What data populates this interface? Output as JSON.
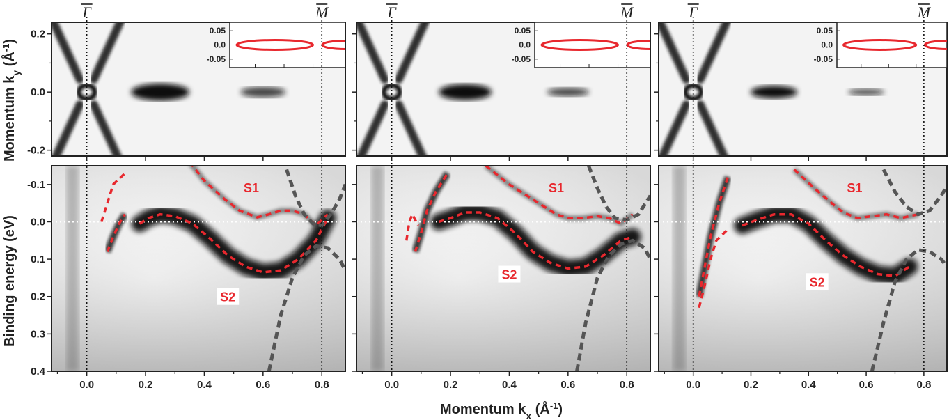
{
  "figure": {
    "x_axis_title": "Momentum k",
    "x_axis_subscript": "x",
    "x_axis_unit": "(Å",
    "x_axis_unit_sup": "-1",
    "x_axis_unit_close": ")",
    "top_y_title": "Momentum k",
    "top_y_subscript": "y",
    "top_y_unit": "(Å",
    "top_y_unit_sup": "-1",
    "top_y_unit_close": ")",
    "bottom_y_title": "Binding energy (eV)",
    "gamma_label": "Γ",
    "m_label": "M"
  },
  "chart_data": {
    "type": "heatmap",
    "panels": 3,
    "x_ticks": [
      "0.0",
      "0.2",
      "0.4",
      "0.6",
      "0.8"
    ],
    "x_tick_values": [
      0.0,
      0.2,
      0.4,
      0.6,
      0.8
    ],
    "xlim": [
      -0.12,
      0.88
    ],
    "top_y_ticks": [
      "0.2",
      "0.0",
      "-0.2"
    ],
    "top_y_tick_values": [
      0.2,
      0.0,
      -0.2
    ],
    "top_ylim": [
      -0.22,
      0.24
    ],
    "bottom_y_ticks": [
      "-0.1",
      "0.0",
      "0.1",
      "0.2",
      "0.3",
      "0.4"
    ],
    "bottom_y_tick_values": [
      -0.1,
      0.0,
      0.1,
      0.2,
      0.3,
      0.4
    ],
    "bottom_ylim": [
      -0.15,
      0.4
    ],
    "inset_y_ticks": [
      "0.05",
      "0.0",
      "-0.05"
    ],
    "inset_y_tick_values": [
      0.05,
      0.0,
      -0.05
    ],
    "inset_ylim": [
      -0.08,
      0.08
    ],
    "high_symmetry_points": [
      {
        "label": "Γ",
        "k": 0.0
      },
      {
        "label": "M",
        "k": 0.8
      }
    ],
    "band_labels": [
      "S1",
      "S2"
    ],
    "fermi_level": 0.0,
    "colors": {
      "fit_bands": "#e8282e",
      "other_bands": "#555555",
      "intensity": "#111111"
    },
    "panels_data": [
      {
        "S1": [
          [
            0.33,
            -0.18
          ],
          [
            0.4,
            -0.11
          ],
          [
            0.47,
            -0.06
          ],
          [
            0.52,
            -0.03
          ],
          [
            0.58,
            -0.012
          ],
          [
            0.62,
            -0.02
          ],
          [
            0.66,
            -0.03
          ],
          [
            0.7,
            -0.03
          ],
          [
            0.74,
            -0.02
          ],
          [
            0.78,
            0.01
          ],
          [
            0.82,
            -0.02
          ]
        ],
        "S2": [
          [
            0.18,
            0.005
          ],
          [
            0.21,
            -0.01
          ],
          [
            0.25,
            -0.02
          ],
          [
            0.3,
            -0.015
          ],
          [
            0.36,
            0.005
          ],
          [
            0.42,
            0.045
          ],
          [
            0.48,
            0.09
          ],
          [
            0.54,
            0.12
          ],
          [
            0.6,
            0.135
          ],
          [
            0.66,
            0.13
          ],
          [
            0.72,
            0.1
          ],
          [
            0.78,
            0.05
          ],
          [
            0.82,
            -0.01
          ]
        ],
        "S1_lower": [
          [
            0.07,
            0.08
          ],
          [
            0.09,
            0.04
          ],
          [
            0.11,
            0.005
          ],
          [
            0.13,
            -0.02
          ]
        ],
        "S2_lower": [
          [
            0.05,
            0.0
          ],
          [
            0.07,
            -0.05
          ],
          [
            0.09,
            -0.1
          ],
          [
            0.13,
            -0.13
          ]
        ],
        "other_band_up": [
          [
            0.62,
            0.4
          ],
          [
            0.66,
            0.25
          ],
          [
            0.7,
            0.15
          ],
          [
            0.74,
            0.09
          ],
          [
            0.78,
            0.065
          ],
          [
            0.82,
            0.07
          ],
          [
            0.86,
            0.1
          ],
          [
            0.88,
            0.13
          ]
        ],
        "other_band_down": [
          [
            0.68,
            -0.14
          ],
          [
            0.71,
            -0.07
          ],
          [
            0.74,
            -0.02
          ],
          [
            0.77,
            0.005
          ],
          [
            0.8,
            0.01
          ],
          [
            0.83,
            -0.02
          ],
          [
            0.86,
            -0.06
          ],
          [
            0.88,
            -0.1
          ]
        ],
        "ellipses": [
          {
            "kx": 0.0,
            "rx": 0.055,
            "ry": 0.055
          },
          {
            "kx": 0.25,
            "rx": 0.11,
            "ry": 0.032
          },
          {
            "kx": 0.6,
            "rx": 0.085,
            "ry": 0.02
          }
        ],
        "s1_label_pos": [
          0.56,
          -0.09
        ],
        "s2_label_pos": [
          0.48,
          0.2
        ]
      },
      {
        "S1": [
          [
            0.32,
            -0.15
          ],
          [
            0.4,
            -0.1
          ],
          [
            0.46,
            -0.07
          ],
          [
            0.52,
            -0.04
          ],
          [
            0.56,
            -0.02
          ],
          [
            0.6,
            -0.01
          ],
          [
            0.65,
            -0.01
          ],
          [
            0.7,
            -0.015
          ],
          [
            0.74,
            -0.01
          ],
          [
            0.78,
            0.005
          ],
          [
            0.82,
            -0.02
          ]
        ],
        "S2": [
          [
            0.16,
            0.0
          ],
          [
            0.2,
            -0.01
          ],
          [
            0.25,
            -0.025
          ],
          [
            0.3,
            -0.025
          ],
          [
            0.36,
            -0.01
          ],
          [
            0.42,
            0.03
          ],
          [
            0.48,
            0.08
          ],
          [
            0.54,
            0.11
          ],
          [
            0.6,
            0.125
          ],
          [
            0.66,
            0.12
          ],
          [
            0.72,
            0.09
          ],
          [
            0.78,
            0.05
          ],
          [
            0.82,
            0.04
          ]
        ],
        "S1_lower": [
          [
            0.08,
            0.08
          ],
          [
            0.1,
            0.03
          ],
          [
            0.12,
            -0.03
          ],
          [
            0.15,
            -0.08
          ],
          [
            0.19,
            -0.13
          ]
        ],
        "S2_lower": [
          [
            0.05,
            0.05
          ],
          [
            0.06,
            0.0
          ],
          [
            0.07,
            -0.02
          ],
          [
            0.09,
            0.01
          ]
        ],
        "other_band_up": [
          [
            0.63,
            0.4
          ],
          [
            0.66,
            0.27
          ],
          [
            0.7,
            0.15
          ],
          [
            0.74,
            0.09
          ],
          [
            0.78,
            0.06
          ],
          [
            0.82,
            0.05
          ],
          [
            0.86,
            0.07
          ],
          [
            0.88,
            0.1
          ]
        ],
        "other_band_down": [
          [
            0.67,
            -0.15
          ],
          [
            0.7,
            -0.09
          ],
          [
            0.73,
            -0.04
          ],
          [
            0.76,
            -0.01
          ],
          [
            0.8,
            -0.005
          ],
          [
            0.84,
            -0.02
          ],
          [
            0.88,
            -0.07
          ]
        ],
        "ellipses": [
          {
            "kx": 0.0,
            "rx": 0.055,
            "ry": 0.055
          },
          {
            "kx": 0.25,
            "rx": 0.1,
            "ry": 0.03
          },
          {
            "kx": 0.6,
            "rx": 0.08,
            "ry": 0.016
          }
        ],
        "s1_label_pos": [
          0.56,
          -0.09
        ],
        "s2_label_pos": [
          0.4,
          0.14
        ]
      },
      {
        "S1": [
          [
            0.35,
            -0.14
          ],
          [
            0.42,
            -0.09
          ],
          [
            0.48,
            -0.05
          ],
          [
            0.52,
            -0.025
          ],
          [
            0.57,
            -0.01
          ],
          [
            0.62,
            -0.015
          ],
          [
            0.67,
            -0.02
          ],
          [
            0.72,
            -0.01
          ],
          [
            0.78,
            -0.02
          ]
        ],
        "S2": [
          [
            0.17,
            0.01
          ],
          [
            0.22,
            -0.005
          ],
          [
            0.28,
            -0.02
          ],
          [
            0.34,
            -0.02
          ],
          [
            0.4,
            0.005
          ],
          [
            0.46,
            0.05
          ],
          [
            0.52,
            0.09
          ],
          [
            0.58,
            0.12
          ],
          [
            0.64,
            0.14
          ],
          [
            0.7,
            0.145
          ],
          [
            0.75,
            0.12
          ]
        ],
        "S1_lower": [
          [
            0.02,
            0.2
          ],
          [
            0.04,
            0.12
          ],
          [
            0.06,
            0.04
          ],
          [
            0.09,
            -0.05
          ],
          [
            0.12,
            -0.12
          ]
        ],
        "S2_lower": [
          [
            0.02,
            0.23
          ],
          [
            0.04,
            0.17
          ],
          [
            0.06,
            0.1
          ],
          [
            0.08,
            0.05
          ],
          [
            0.12,
            0.02
          ]
        ],
        "other_band_up": [
          [
            0.62,
            0.4
          ],
          [
            0.66,
            0.27
          ],
          [
            0.7,
            0.16
          ],
          [
            0.74,
            0.1
          ],
          [
            0.78,
            0.075
          ],
          [
            0.82,
            0.08
          ],
          [
            0.86,
            0.1
          ],
          [
            0.9,
            0.14
          ]
        ],
        "other_band_down": [
          [
            0.66,
            -0.14
          ],
          [
            0.7,
            -0.08
          ],
          [
            0.74,
            -0.04
          ],
          [
            0.78,
            -0.02
          ],
          [
            0.82,
            -0.03
          ],
          [
            0.86,
            -0.07
          ],
          [
            0.9,
            -0.12
          ]
        ],
        "ellipses": [
          {
            "kx": 0.0,
            "rx": 0.055,
            "ry": 0.055
          },
          {
            "kx": 0.28,
            "rx": 0.09,
            "ry": 0.024
          },
          {
            "kx": 0.6,
            "rx": 0.07,
            "ry": 0.012
          }
        ],
        "s1_label_pos": [
          0.56,
          -0.09
        ],
        "s2_label_pos": [
          0.43,
          0.16
        ]
      }
    ]
  }
}
